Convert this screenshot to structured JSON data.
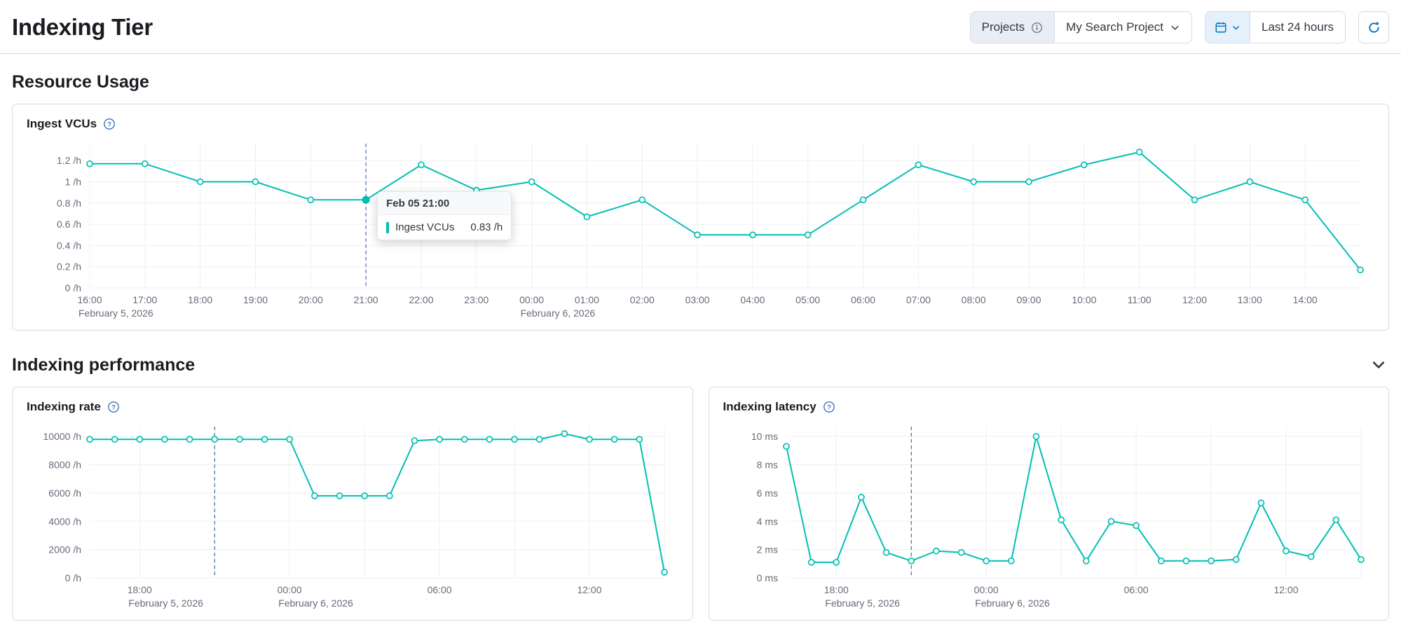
{
  "page": {
    "title": "Indexing Tier",
    "sections": {
      "resource_usage": "Resource Usage",
      "indexing_performance": "Indexing performance"
    }
  },
  "header": {
    "projects_label": "Projects",
    "project_selector": "My Search Project",
    "time_range": "Last 24 hours"
  },
  "tooltip": {
    "header": "Feb 05 21:00",
    "series_label": "Ingest VCUs",
    "value": "0.83 /h"
  },
  "colors": {
    "series": "#00BFB3",
    "cursor": "#4A6AA8",
    "grid": "#ECEFF3",
    "axis_text": "#646B79",
    "border": "#D3DAE6",
    "accent_blue": "#0071C2",
    "title_text": "#1A1C21"
  },
  "chart_data": [
    {
      "id": "ingest_vcus",
      "type": "line",
      "title": "Ingest VCUs",
      "unit": "/h",
      "x_hours_start": "16:00 Feb 5, 2026",
      "values": [
        1.17,
        1.17,
        1,
        1,
        0.83,
        0.83,
        1.16,
        0.92,
        1,
        0.67,
        0.83,
        0.5,
        0.5,
        0.5,
        0.83,
        1.16,
        1,
        1,
        1.16,
        1.28,
        0.83,
        1,
        0.83,
        0.17
      ],
      "xtick_indices": [
        0,
        1,
        2,
        3,
        4,
        5,
        6,
        7,
        8,
        9,
        10,
        11,
        12,
        13,
        14,
        15,
        16,
        17,
        18,
        19,
        20,
        21,
        22
      ],
      "xtick_labels": [
        "16:00",
        "17:00",
        "18:00",
        "19:00",
        "20:00",
        "21:00",
        "22:00",
        "23:00",
        "00:00",
        "01:00",
        "02:00",
        "03:00",
        "04:00",
        "05:00",
        "06:00",
        "07:00",
        "08:00",
        "09:00",
        "10:00",
        "11:00",
        "12:00",
        "13:00",
        "14:00"
      ],
      "grid_indices": [
        0,
        1,
        2,
        3,
        4,
        5,
        6,
        7,
        8,
        9,
        10,
        11,
        12,
        13,
        14,
        15,
        16,
        17,
        18,
        19,
        20,
        21,
        22
      ],
      "yticks": [
        0,
        0.2,
        0.4,
        0.6,
        0.8,
        1,
        1.2
      ],
      "ytick_labels": [
        "0 /h",
        "0.2 /h",
        "0.4 /h",
        "0.6 /h",
        "0.8 /h",
        "1 /h",
        "1.2 /h"
      ],
      "ylim": [
        0,
        1.36
      ],
      "date_labels": [
        {
          "index": 0,
          "text": "February 5, 2026"
        },
        {
          "index": 8,
          "text": "February 6, 2026"
        }
      ],
      "cursor_index": 5,
      "hover_index": 5,
      "hover_value": 0.83
    },
    {
      "id": "indexing_rate",
      "type": "line",
      "title": "Indexing rate",
      "unit": "/h",
      "x_hours_start": "16:00 Feb 5, 2026",
      "values": [
        9800,
        9800,
        9800,
        9800,
        9800,
        9800,
        9800,
        9800,
        9800,
        5800,
        5800,
        5800,
        5800,
        9700,
        9800,
        9800,
        9800,
        9800,
        9800,
        10200,
        9800,
        9800,
        9800,
        400
      ],
      "xtick_indices": [
        2,
        8,
        14,
        20
      ],
      "xtick_labels": [
        "18:00",
        "00:00",
        "06:00",
        "12:00"
      ],
      "grid_indices": [
        2,
        5,
        8,
        11,
        14,
        17,
        20,
        23
      ],
      "yticks": [
        0,
        2000,
        4000,
        6000,
        8000,
        10000
      ],
      "ytick_labels": [
        "0 /h",
        "2000 /h",
        "4000 /h",
        "6000 /h",
        "8000 /h",
        "10000 /h"
      ],
      "ylim": [
        0,
        10700
      ],
      "date_labels": [
        {
          "index": 2,
          "text": "February 5, 2026"
        },
        {
          "index": 8,
          "text": "February 6, 2026"
        }
      ],
      "cursor_index": 5
    },
    {
      "id": "indexing_latency",
      "type": "line",
      "title": "Indexing latency",
      "unit": "ms",
      "x_hours_start": "16:00 Feb 5, 2026",
      "values": [
        9.3,
        1.1,
        1.1,
        5.7,
        1.8,
        1.2,
        1.9,
        1.8,
        1.2,
        1.2,
        10,
        4.1,
        1.2,
        4,
        3.7,
        1.2,
        1.2,
        1.2,
        1.3,
        5.3,
        1.9,
        1.5,
        4.1,
        1.3
      ],
      "xtick_indices": [
        2,
        8,
        14,
        20
      ],
      "xtick_labels": [
        "18:00",
        "00:00",
        "06:00",
        "12:00"
      ],
      "grid_indices": [
        2,
        5,
        8,
        11,
        14,
        17,
        20,
        23
      ],
      "yticks": [
        0,
        2,
        4,
        6,
        8,
        10
      ],
      "ytick_labels": [
        "0 ms",
        "2 ms",
        "4 ms",
        "6 ms",
        "8 ms",
        "10 ms"
      ],
      "ylim": [
        0,
        10.7
      ],
      "date_labels": [
        {
          "index": 2,
          "text": "February 5, 2026"
        },
        {
          "index": 8,
          "text": "February 6, 2026"
        }
      ],
      "cursor_index": 5
    }
  ]
}
